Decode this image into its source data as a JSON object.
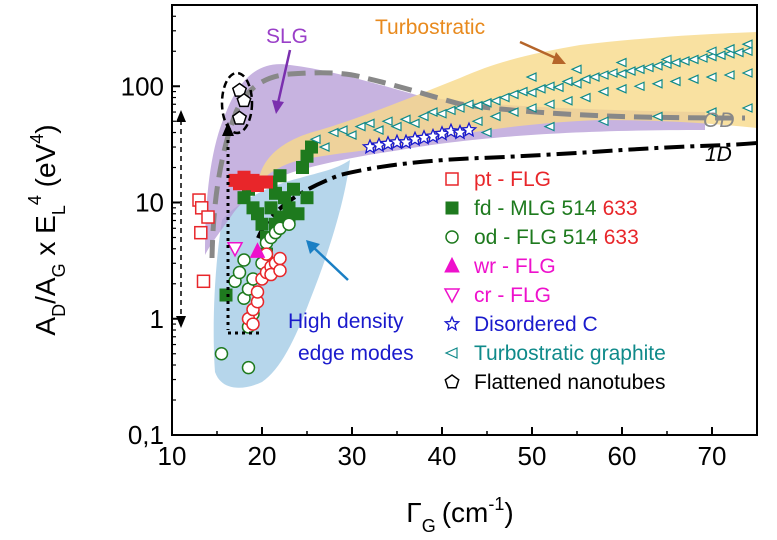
{
  "chart_data": {
    "type": "scatter",
    "xlabel": "Γ_G (cm⁻¹)",
    "ylabel": "A_D/A_G x E_L^4 (eV^4)",
    "x_ticks": [
      "10",
      "20",
      "30",
      "40",
      "50",
      "60",
      "70"
    ],
    "y_ticks": [
      "0,1",
      "1",
      "10",
      "100"
    ],
    "xlim": [
      10,
      75
    ],
    "ylim": [
      0.1,
      500
    ],
    "y_scale": "log",
    "colors": {
      "pt": "#e8262a",
      "fd": "#1e7a1e",
      "od": "#1e7a1e",
      "wr": "#ee11cc",
      "cr": "#ee11cc",
      "disordered": "#1a1acc",
      "turbo": "#0f8a8a",
      "flattened": "#000000",
      "slg_region": "#b49ad6",
      "turbo_region": "#f8d98a",
      "hd_region": "#a9cfe8"
    },
    "annotations": {
      "slg": "SLG",
      "turbostratic": "Turbostratic",
      "high_density_1": "High density",
      "high_density_2": "edge modes",
      "od_curve": "OD",
      "oned_curve": "1D"
    },
    "legend": [
      {
        "marker": "open-square",
        "color": "#e8262a",
        "label": "pt - FLG",
        "label_color": "#e8262a"
      },
      {
        "marker": "filled-square",
        "color": "#1e7a1e",
        "label": "fd - MLG 514",
        "label_color": "#1e7a1e",
        "suffix": "633",
        "suffix_color": "#e8262a"
      },
      {
        "marker": "open-circle",
        "color": "#1e7a1e",
        "label": "od - FLG 514",
        "label_color": "#1e7a1e",
        "suffix": "633",
        "suffix_color": "#e8262a"
      },
      {
        "marker": "filled-triangle-up",
        "color": "#ee11cc",
        "label": "wr - FLG",
        "label_color": "#ee11cc"
      },
      {
        "marker": "open-triangle-down",
        "color": "#ee11cc",
        "label": "cr - FLG",
        "label_color": "#ee11cc"
      },
      {
        "marker": "open-star",
        "color": "#1a1acc",
        "label": "Disordered C",
        "label_color": "#1a1acc"
      },
      {
        "marker": "open-triangle-left",
        "color": "#0f8a8a",
        "label": "Turbostratic graphite",
        "label_color": "#0f8a8a"
      },
      {
        "marker": "open-pentagon",
        "color": "#000000",
        "label": "Flattened nanotubes",
        "label_color": "#000000"
      }
    ],
    "series": [
      {
        "name": "pt - FLG",
        "marker": "open-square",
        "color": "#e8262a",
        "points": [
          [
            13.0,
            10.5
          ],
          [
            13.3,
            9
          ],
          [
            13.2,
            5.5
          ],
          [
            13.5,
            2.1
          ],
          [
            14,
            7.5
          ]
        ]
      },
      {
        "name": "fd - MLG 514",
        "marker": "filled-square",
        "color": "#1e7a1e",
        "points": [
          [
            16,
            1.6
          ],
          [
            18,
            11
          ],
          [
            18.5,
            13
          ],
          [
            19,
            9
          ],
          [
            19.5,
            8
          ],
          [
            20,
            6.5
          ],
          [
            20.5,
            5
          ],
          [
            20.5,
            3.6
          ],
          [
            21,
            9
          ],
          [
            21.5,
            12
          ],
          [
            21,
            15
          ],
          [
            22,
            17
          ],
          [
            22.5,
            11
          ],
          [
            23,
            9
          ],
          [
            23,
            7.5
          ],
          [
            23.5,
            13
          ],
          [
            24,
            8
          ],
          [
            24.5,
            20
          ],
          [
            25,
            25
          ],
          [
            25,
            11
          ],
          [
            25.5,
            30
          ],
          [
            22,
            7.5
          ],
          [
            21.5,
            6.5
          ]
        ]
      },
      {
        "name": "fd - MLG 633",
        "marker": "filled-square",
        "color": "#e8262a",
        "points": [
          [
            17,
            15.5
          ],
          [
            17.5,
            14.5
          ],
          [
            18,
            16.5
          ],
          [
            18.5,
            14.5
          ],
          [
            19,
            15.5
          ],
          [
            19.5,
            14
          ],
          [
            20,
            15
          ],
          [
            20.5,
            15
          ]
        ]
      },
      {
        "name": "od - FLG 514",
        "marker": "open-circle",
        "color": "#1e7a1e",
        "points": [
          [
            15.5,
            0.5
          ],
          [
            17,
            2.1
          ],
          [
            17.5,
            2.5
          ],
          [
            18,
            1.5
          ],
          [
            18.5,
            1.8
          ],
          [
            19,
            2.2
          ],
          [
            18,
            3.2
          ],
          [
            18.5,
            0.85
          ],
          [
            19,
            1.1
          ],
          [
            20.5,
            4.5
          ],
          [
            21,
            5
          ],
          [
            20,
            3
          ],
          [
            21.5,
            5.5
          ],
          [
            22,
            6
          ],
          [
            23,
            6.5
          ],
          [
            18.5,
            0.38
          ]
        ]
      },
      {
        "name": "od - FLG 633",
        "marker": "open-circle",
        "color": "#e8262a",
        "points": [
          [
            18.5,
            1.0
          ],
          [
            19,
            1.2
          ],
          [
            19.5,
            1.4
          ],
          [
            19,
            0.9
          ],
          [
            20,
            2.2
          ],
          [
            20.5,
            2.5
          ],
          [
            21,
            2.8
          ],
          [
            21.5,
            3.0
          ],
          [
            22,
            3.3
          ],
          [
            20.5,
            3.6
          ],
          [
            21,
            2.4
          ],
          [
            22,
            2.6
          ],
          [
            19.5,
            1.7
          ]
        ]
      },
      {
        "name": "wr - FLG",
        "marker": "filled-triangle-up",
        "color": "#ee11cc",
        "points": [
          [
            19.5,
            3.8
          ]
        ]
      },
      {
        "name": "cr - FLG",
        "marker": "open-triangle-down",
        "color": "#ee11cc",
        "points": [
          [
            17,
            4.0
          ]
        ]
      },
      {
        "name": "Disordered C",
        "marker": "open-star",
        "color": "#1a1acc",
        "points": [
          [
            32,
            30
          ],
          [
            33,
            31
          ],
          [
            34,
            32
          ],
          [
            35,
            33
          ],
          [
            36,
            33
          ],
          [
            37,
            35
          ],
          [
            38,
            36
          ],
          [
            39,
            37
          ],
          [
            40,
            39
          ],
          [
            41,
            41
          ],
          [
            42,
            40
          ],
          [
            43,
            42
          ]
        ]
      },
      {
        "name": "Turbostratic graphite",
        "marker": "open-triangle-left",
        "color": "#0f8a8a",
        "points": [
          [
            26,
            35
          ],
          [
            27,
            30
          ],
          [
            28,
            40
          ],
          [
            29,
            42
          ],
          [
            30,
            38
          ],
          [
            31,
            45
          ],
          [
            32,
            48
          ],
          [
            33,
            42
          ],
          [
            34,
            50
          ],
          [
            35,
            45
          ],
          [
            36,
            52
          ],
          [
            37,
            48
          ],
          [
            38,
            55
          ],
          [
            39,
            60
          ],
          [
            40,
            58
          ],
          [
            41,
            62
          ],
          [
            42,
            65
          ],
          [
            43,
            70
          ],
          [
            44,
            68
          ],
          [
            45,
            72
          ],
          [
            46,
            75
          ],
          [
            47,
            80
          ],
          [
            48,
            85
          ],
          [
            49,
            90
          ],
          [
            50,
            88
          ],
          [
            51,
            95
          ],
          [
            52,
            100
          ],
          [
            53,
            98
          ],
          [
            54,
            110
          ],
          [
            55,
            105
          ],
          [
            56,
            115
          ],
          [
            57,
            120
          ],
          [
            58,
            125
          ],
          [
            59,
            130
          ],
          [
            60,
            128
          ],
          [
            61,
            135
          ],
          [
            62,
            140
          ],
          [
            63,
            145
          ],
          [
            64,
            150
          ],
          [
            65,
            155
          ],
          [
            66,
            160
          ],
          [
            67,
            165
          ],
          [
            68,
            170
          ],
          [
            69,
            175
          ],
          [
            70,
            180
          ],
          [
            71,
            185
          ],
          [
            72,
            190
          ],
          [
            73,
            195
          ],
          [
            74,
            200
          ],
          [
            44,
            50
          ],
          [
            46,
            55
          ],
          [
            48,
            60
          ],
          [
            50,
            65
          ],
          [
            52,
            70
          ],
          [
            54,
            75
          ],
          [
            56,
            80
          ],
          [
            58,
            90
          ],
          [
            60,
            95
          ],
          [
            62,
            100
          ],
          [
            64,
            105
          ],
          [
            66,
            110
          ],
          [
            68,
            115
          ],
          [
            70,
            120
          ],
          [
            72,
            125
          ],
          [
            74,
            130
          ],
          [
            50,
            120
          ],
          [
            55,
            140
          ],
          [
            60,
            160
          ],
          [
            65,
            170
          ],
          [
            70,
            200
          ],
          [
            72,
            210
          ],
          [
            74,
            230
          ],
          [
            45,
            40
          ],
          [
            52,
            45
          ],
          [
            58,
            50
          ],
          [
            64,
            55
          ],
          [
            70,
            60
          ],
          [
            74,
            65
          ]
        ]
      },
      {
        "name": "Flattened nanotubes",
        "marker": "open-pentagon",
        "color": "#000000",
        "points": [
          [
            17.5,
            92
          ],
          [
            18,
            75
          ],
          [
            17.5,
            53
          ]
        ]
      }
    ]
  }
}
